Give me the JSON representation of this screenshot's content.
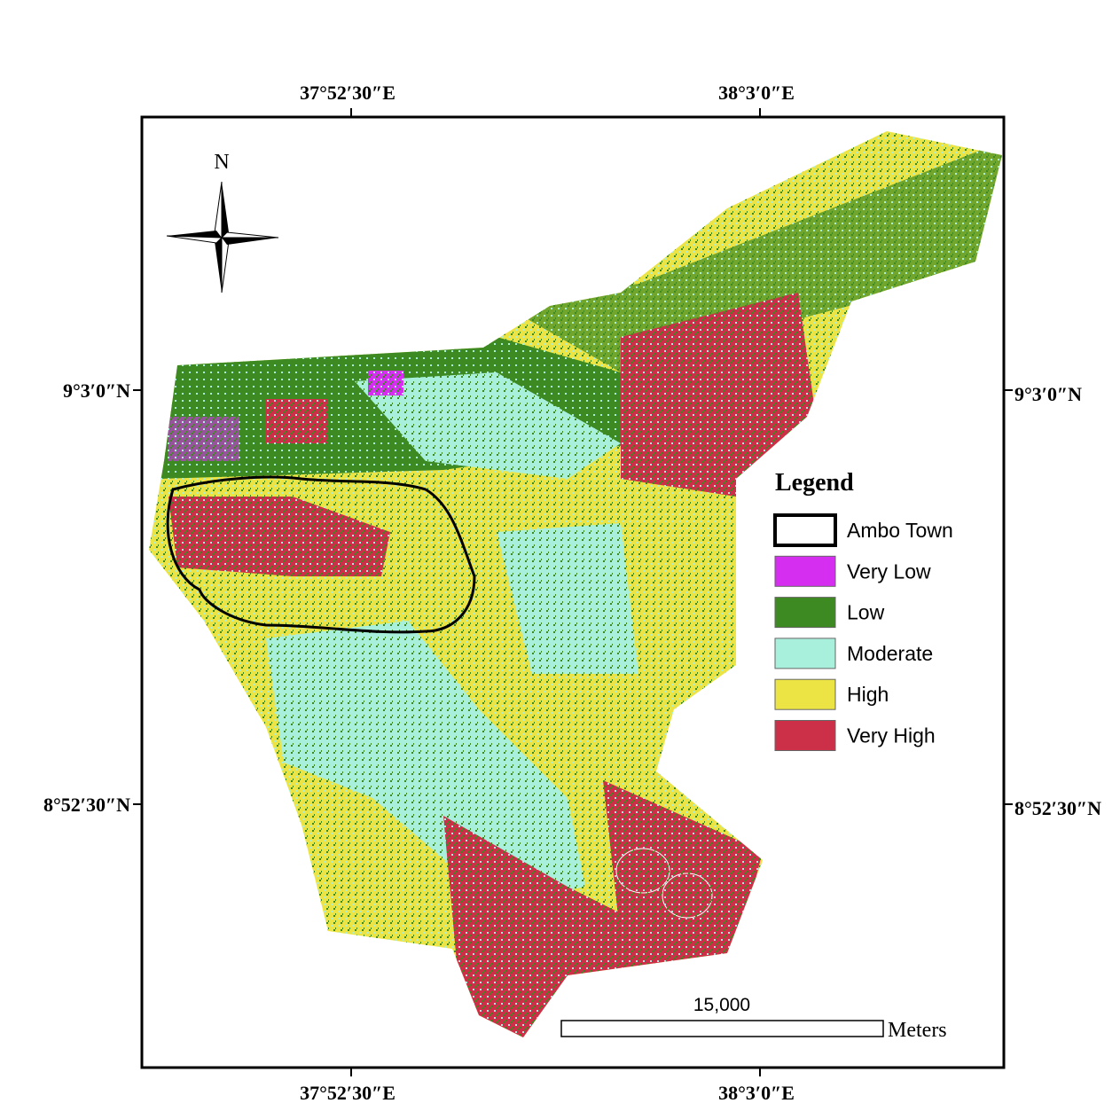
{
  "map": {
    "north_arrow": "N",
    "graticule": {
      "top": [
        "37°52′30″E",
        "38°3′0″E"
      ],
      "bottom": [
        "37°52′30″E",
        "38°3′0″E"
      ],
      "left": [
        "9°3′0″N",
        "8°52′30″N"
      ],
      "right": [
        "9°3′0″N",
        "8°52′30″N"
      ]
    },
    "legend": {
      "title": "Legend",
      "items": [
        {
          "label": "Ambo Town",
          "color": "#ffffff",
          "symbol": "outline"
        },
        {
          "label": "Very Low",
          "color": "#d62ef0"
        },
        {
          "label": "Low",
          "color": "#3e8a22"
        },
        {
          "label": "Moderate",
          "color": "#a8f0dc"
        },
        {
          "label": "High",
          "color": "#ece444"
        },
        {
          "label": "Very High",
          "color": "#cc3048"
        }
      ]
    },
    "scale_bar": {
      "label": "15,000",
      "unit": "Meters"
    }
  }
}
